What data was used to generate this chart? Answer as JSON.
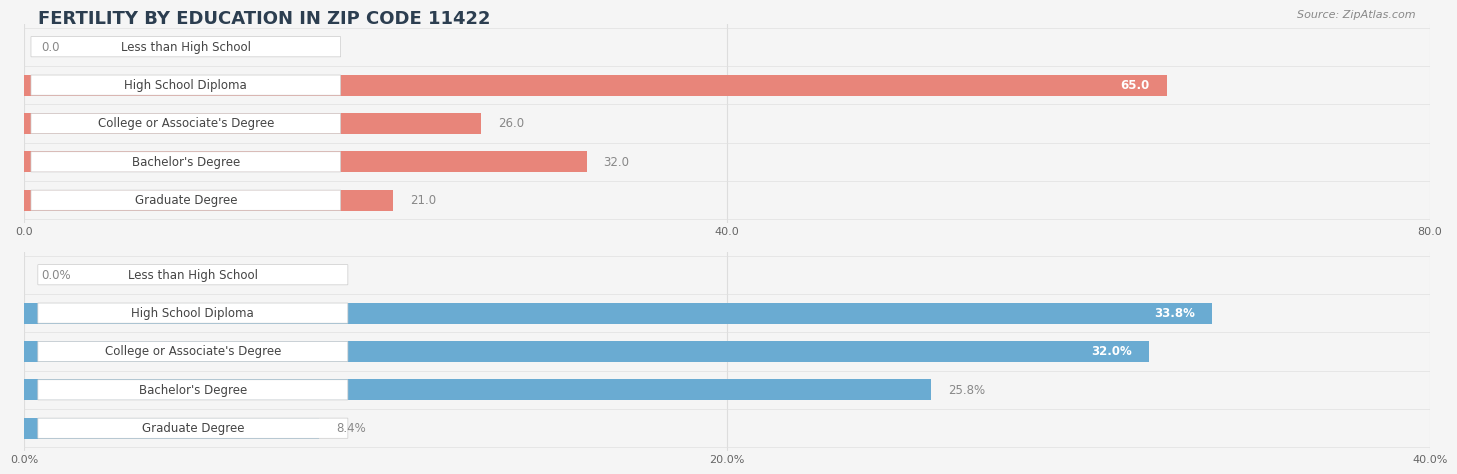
{
  "title": "FERTILITY BY EDUCATION IN ZIP CODE 11422",
  "source": "Source: ZipAtlas.com",
  "top_chart": {
    "categories": [
      "Less than High School",
      "High School Diploma",
      "College or Associate's Degree",
      "Bachelor's Degree",
      "Graduate Degree"
    ],
    "values": [
      0.0,
      65.0,
      26.0,
      32.0,
      21.0
    ],
    "xlim": [
      0,
      80
    ],
    "xticks": [
      0.0,
      40.0,
      80.0
    ],
    "xtick_labels": [
      "0.0",
      "40.0",
      "80.0"
    ],
    "bar_color": "#E8857A",
    "label_color_inside": "#ffffff",
    "label_color_outside": "#888888",
    "value_suffix": ""
  },
  "bottom_chart": {
    "categories": [
      "Less than High School",
      "High School Diploma",
      "College or Associate's Degree",
      "Bachelor's Degree",
      "Graduate Degree"
    ],
    "values": [
      0.0,
      33.8,
      32.0,
      25.8,
      8.4
    ],
    "xlim": [
      0,
      40
    ],
    "xticks": [
      0.0,
      20.0,
      40.0
    ],
    "xtick_labels": [
      "0.0%",
      "20.0%",
      "40.0%"
    ],
    "bar_color": "#6AABD2",
    "label_color_inside": "#ffffff",
    "label_color_outside": "#888888",
    "value_suffix": "%"
  },
  "label_box_color": "#ffffff",
  "label_box_edge": "#cccccc",
  "label_text_color": "#444444",
  "background_color": "#f5f5f5",
  "bar_height": 0.55,
  "title_fontsize": 13,
  "label_fontsize": 8.5,
  "value_fontsize": 8.5,
  "axis_tick_fontsize": 8,
  "grid_color": "#dddddd",
  "separator_color": "#e0e0e0",
  "title_color": "#2c3e50",
  "source_color": "#888888"
}
